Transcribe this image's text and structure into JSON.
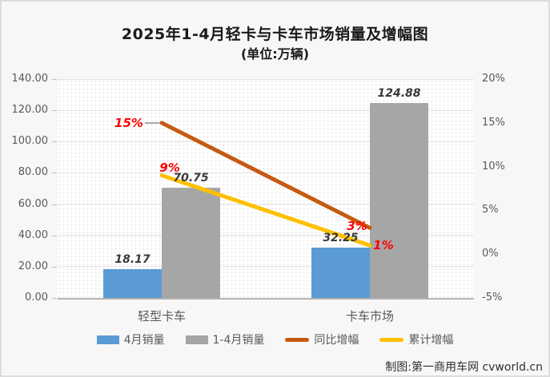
{
  "page": {
    "footer": "制图:第一商用车网 cvworld.cn"
  },
  "chart_data": {
    "type": "bar",
    "subtype": "bar-line-combo",
    "title": "2025年1-4月轻卡与卡车市场销量及增幅图",
    "subtitle": "(单位:万辆)",
    "categories": [
      "轻型卡车",
      "卡车市场"
    ],
    "series": [
      {
        "name": "4月销量",
        "type": "bar",
        "axis": "left",
        "color": "#5B9BD5",
        "values": [
          18.17,
          32.25
        ],
        "labels": [
          "18.17",
          "32.25"
        ]
      },
      {
        "name": "1-4月销量",
        "type": "bar",
        "axis": "left",
        "color": "#A6A6A6",
        "values": [
          70.75,
          124.88
        ],
        "labels": [
          "70.75",
          "124.88"
        ]
      },
      {
        "name": "同比增幅",
        "type": "line",
        "axis": "right",
        "color": "#C55A11",
        "values": [
          15,
          3
        ],
        "labels": [
          "15%",
          "3%"
        ]
      },
      {
        "name": "累计增幅",
        "type": "line",
        "axis": "right",
        "color": "#FFC000",
        "values": [
          9,
          1
        ],
        "labels": [
          "9%",
          "1%"
        ]
      }
    ],
    "left_axis": {
      "min": 0,
      "max": 140,
      "step": 20,
      "tick_labels": [
        "0.00",
        "20.00",
        "40.00",
        "60.00",
        "80.00",
        "100.00",
        "120.00",
        "140.00"
      ]
    },
    "right_axis": {
      "min": -5,
      "max": 20,
      "step": 5,
      "tick_labels": [
        "-5%",
        "0%",
        "5%",
        "10%",
        "15%",
        "20%"
      ]
    },
    "grid": true,
    "legend_position": "bottom",
    "value_label_color": "#3a3a3a",
    "line_label_color": "#FE0000"
  }
}
